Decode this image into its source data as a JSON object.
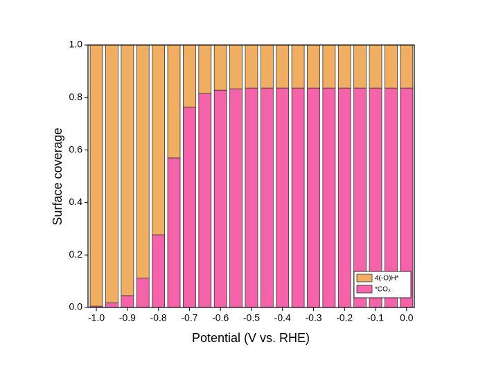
{
  "chart_data": {
    "type": "stacked-bar",
    "x_label": "Potential (V vs. RHE)",
    "y_label": "Surface coverage",
    "x": [
      -1.0,
      -0.95,
      -0.9,
      -0.85,
      -0.8,
      -0.75,
      -0.7,
      -0.65,
      -0.6,
      -0.55,
      -0.5,
      -0.45,
      -0.4,
      -0.35,
      -0.3,
      -0.25,
      -0.2,
      -0.15,
      -0.1,
      -0.05,
      0.0
    ],
    "series": [
      {
        "name": "4(-O)H*",
        "color": "#f0ae62",
        "values": [
          0.995,
          0.982,
          0.955,
          0.888,
          0.723,
          0.43,
          0.237,
          0.185,
          0.172,
          0.167,
          0.164,
          0.164,
          0.164,
          0.164,
          0.164,
          0.164,
          0.164,
          0.164,
          0.164,
          0.164,
          0.164
        ]
      },
      {
        "name": "*CO₂",
        "color": "#f462aa",
        "values": [
          0.005,
          0.018,
          0.045,
          0.112,
          0.277,
          0.57,
          0.763,
          0.815,
          0.828,
          0.833,
          0.836,
          0.836,
          0.836,
          0.836,
          0.836,
          0.836,
          0.836,
          0.836,
          0.836,
          0.836,
          0.836
        ]
      }
    ],
    "xlim": [
      -1.027,
      0.025
    ],
    "ylim": [
      0,
      1
    ],
    "xticks": [
      {
        "value": -1.0,
        "label": "-1.0"
      },
      {
        "value": -0.9,
        "label": "-0.9"
      },
      {
        "value": -0.8,
        "label": "-0.8"
      },
      {
        "value": -0.7,
        "label": "-0.7"
      },
      {
        "value": -0.6,
        "label": "-0.6"
      },
      {
        "value": -0.5,
        "label": "-0.5"
      },
      {
        "value": -0.4,
        "label": "-0.4"
      },
      {
        "value": -0.3,
        "label": "-0.3"
      },
      {
        "value": -0.2,
        "label": "-0.2"
      },
      {
        "value": -0.1,
        "label": "-0.1"
      },
      {
        "value": 0.0,
        "label": "0.0"
      }
    ],
    "yticks": [
      {
        "value": 0,
        "label": "0.0"
      },
      {
        "value": 0.2,
        "label": "0.2"
      },
      {
        "value": 0.4,
        "label": "0.4"
      },
      {
        "value": 0.6,
        "label": "0.6"
      },
      {
        "value": 0.8,
        "label": "0.8"
      },
      {
        "value": 1,
        "label": "1.0"
      }
    ],
    "legend": "lower right"
  }
}
